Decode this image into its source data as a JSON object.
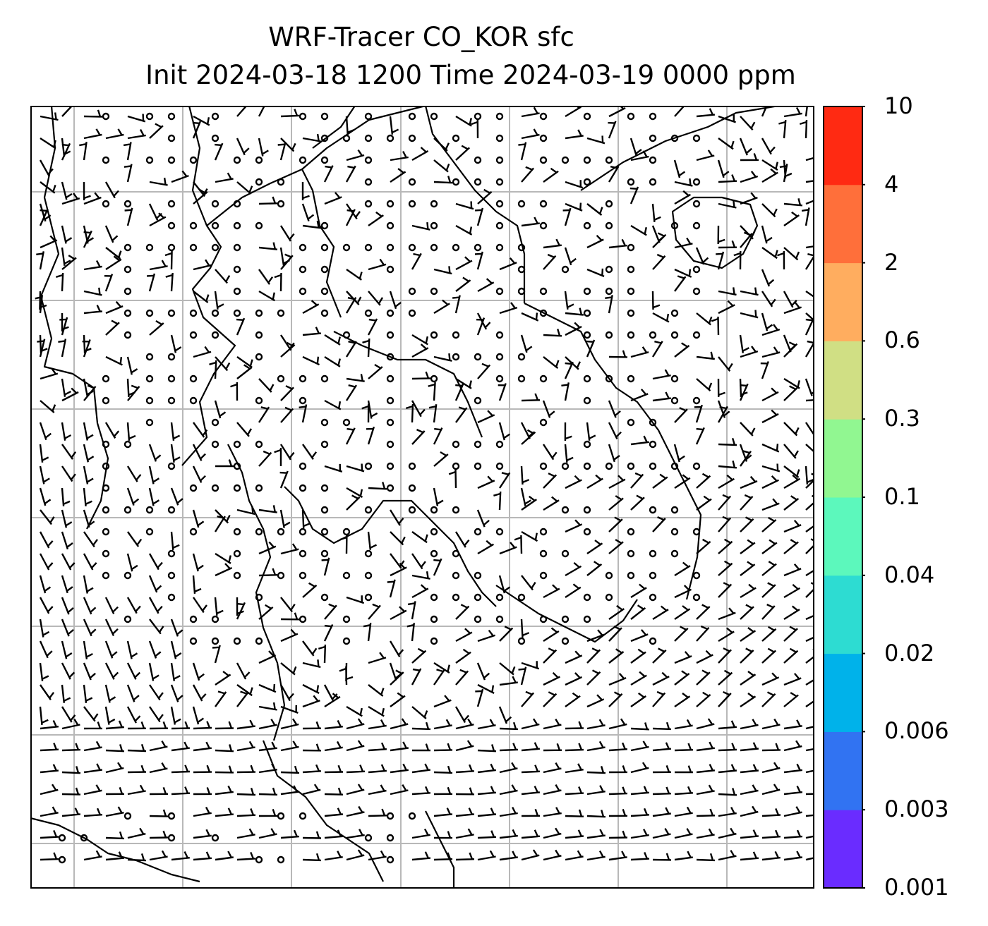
{
  "title": {
    "line1": "WRF-Tracer CO_KOR sfc",
    "line2": "Init 2024-03-18 1200 Time 2024-03-19 0000 ppm"
  },
  "colorbar": {
    "levels": [
      "0.001",
      "0.003",
      "0.006",
      "0.02",
      "0.04",
      "0.1",
      "0.3",
      "0.6",
      "2",
      "4",
      "10"
    ],
    "colors": [
      "#6a2cff",
      "#3173f2",
      "#00b2ea",
      "#2ddcd2",
      "#5cf8bc",
      "#91f791",
      "#d0df84",
      "#ffad5f",
      "#ff6f3a",
      "#ff2a12"
    ]
  },
  "map": {
    "grid_color": "#b8b8b8",
    "gridlines": "on",
    "content": "wind barbs and coastlines over East Asia (Korea-centered domain)"
  }
}
